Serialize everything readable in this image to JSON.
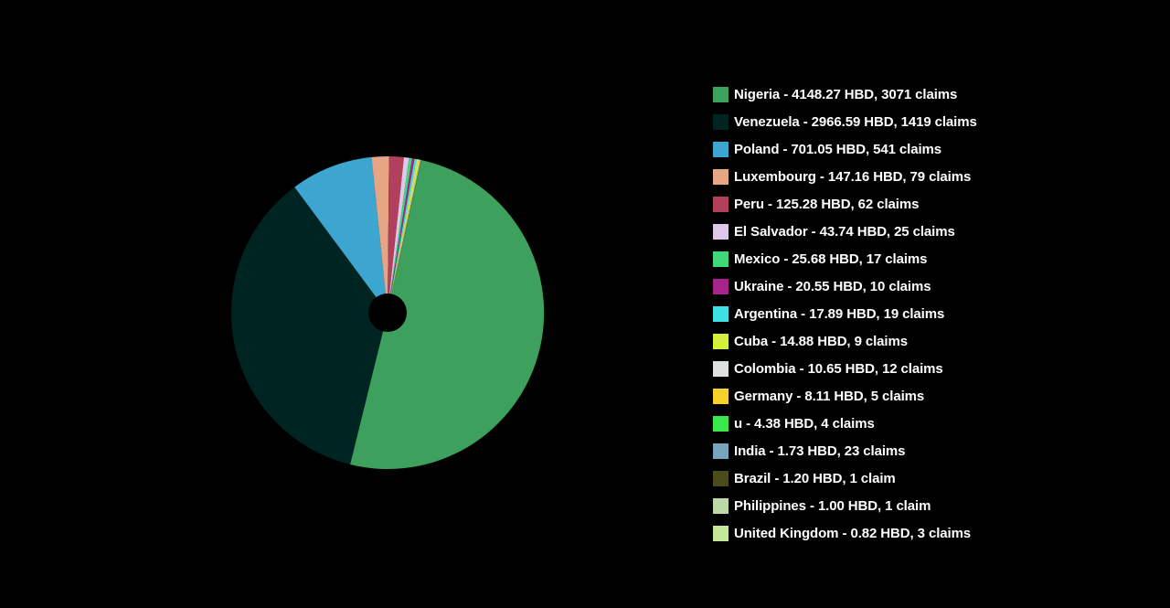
{
  "chart_data": {
    "type": "pie",
    "donut": true,
    "legend_position": "right",
    "series": [
      {
        "name": "Nigeria",
        "value": 4148.27,
        "claims": 3071,
        "color": "#3da05d",
        "label": "Nigeria - 4148.27 HBD, 3071 claims"
      },
      {
        "name": "Venezuela",
        "value": 2966.59,
        "claims": 1419,
        "color": "#002421",
        "label": "Venezuela - 2966.59 HBD, 1419 claims"
      },
      {
        "name": "Poland",
        "value": 701.05,
        "claims": 541,
        "color": "#3ca6d1",
        "label": "Poland - 701.05 HBD, 541 claims"
      },
      {
        "name": "Luxembourg",
        "value": 147.16,
        "claims": 79,
        "color": "#e6a584",
        "label": "Luxembourg - 147.16 HBD, 79 claims"
      },
      {
        "name": "Peru",
        "value": 125.28,
        "claims": 62,
        "color": "#b0405b",
        "label": "Peru - 125.28 HBD, 62 claims"
      },
      {
        "name": "El Salvador",
        "value": 43.74,
        "claims": 25,
        "color": "#dcc8e8",
        "label": "El Salvador - 43.74 HBD, 25 claims"
      },
      {
        "name": "Mexico",
        "value": 25.68,
        "claims": 17,
        "color": "#3fd87a",
        "label": "Mexico - 25.68 HBD, 17 claims"
      },
      {
        "name": "Ukraine",
        "value": 20.55,
        "claims": 10,
        "color": "#a8238a",
        "label": "Ukraine - 20.55 HBD, 10 claims"
      },
      {
        "name": "Argentina",
        "value": 17.89,
        "claims": 19,
        "color": "#3ee0e4",
        "label": "Argentina - 17.89 HBD, 19 claims"
      },
      {
        "name": "Cuba",
        "value": 14.88,
        "claims": 9,
        "color": "#d4f03a",
        "label": "Cuba - 14.88 HBD, 9 claims"
      },
      {
        "name": "Colombia",
        "value": 10.65,
        "claims": 12,
        "color": "#dde2e0",
        "label": "Colombia - 10.65 HBD, 12 claims"
      },
      {
        "name": "Germany",
        "value": 8.11,
        "claims": 5,
        "color": "#f6d22a",
        "label": "Germany - 8.11 HBD, 5 claims"
      },
      {
        "name": "u",
        "value": 4.38,
        "claims": 4,
        "color": "#3be84c",
        "label": "u - 4.38 HBD, 4 claims"
      },
      {
        "name": "India",
        "value": 1.73,
        "claims": 23,
        "color": "#78a4bc",
        "label": "India - 1.73 HBD, 23 claims"
      },
      {
        "name": "Brazil",
        "value": 1.2,
        "claims": 1,
        "color": "#4a4a1a",
        "label": "Brazil - 1.20 HBD, 1 claim"
      },
      {
        "name": "Philippines",
        "value": 1.0,
        "claims": 1,
        "color": "#bcd9a8",
        "label": "Philippines - 1.00 HBD, 1 claim"
      },
      {
        "name": "United Kingdom",
        "value": 0.82,
        "claims": 3,
        "color": "#c4e89a",
        "label": "United Kingdom - 0.82 HBD, 3 claims"
      }
    ]
  }
}
